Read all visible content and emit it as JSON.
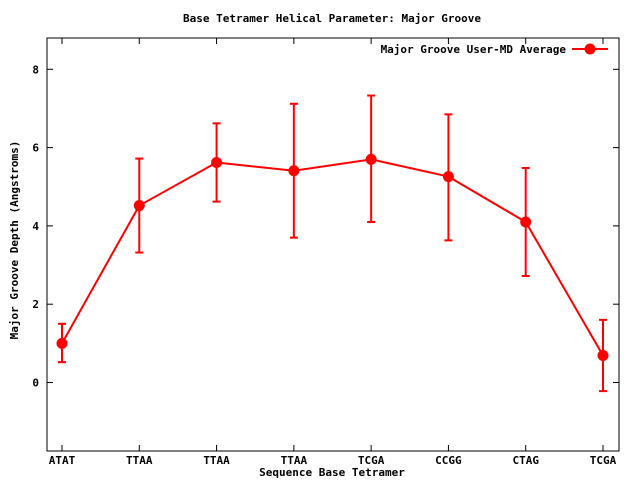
{
  "chart_data": {
    "type": "line",
    "title": "Base Tetramer Helical Parameter: Major Groove",
    "xlabel": "Sequence Base Tetramer",
    "ylabel": "Major Groove Depth (Angstroms)",
    "categories": [
      "ATAT",
      "TTAA",
      "TTAA",
      "TTAA",
      "TCGA",
      "CCGG",
      "CTAG",
      "TCGA"
    ],
    "ylim": [
      -1.75,
      8.8
    ],
    "yticks": [
      0,
      2,
      4,
      6,
      8
    ],
    "grid": false,
    "legend_position": "top-right",
    "series": [
      {
        "name": "Major Groove User-MD Average",
        "color": "#ff0000",
        "values": [
          1.0,
          4.52,
          5.62,
          5.41,
          5.7,
          5.26,
          4.1,
          0.69
        ],
        "error_low": [
          0.52,
          3.32,
          4.62,
          3.7,
          4.1,
          3.63,
          2.72,
          -0.22
        ],
        "error_high": [
          1.5,
          5.72,
          6.62,
          7.12,
          7.33,
          6.85,
          5.48,
          1.6
        ]
      }
    ]
  }
}
